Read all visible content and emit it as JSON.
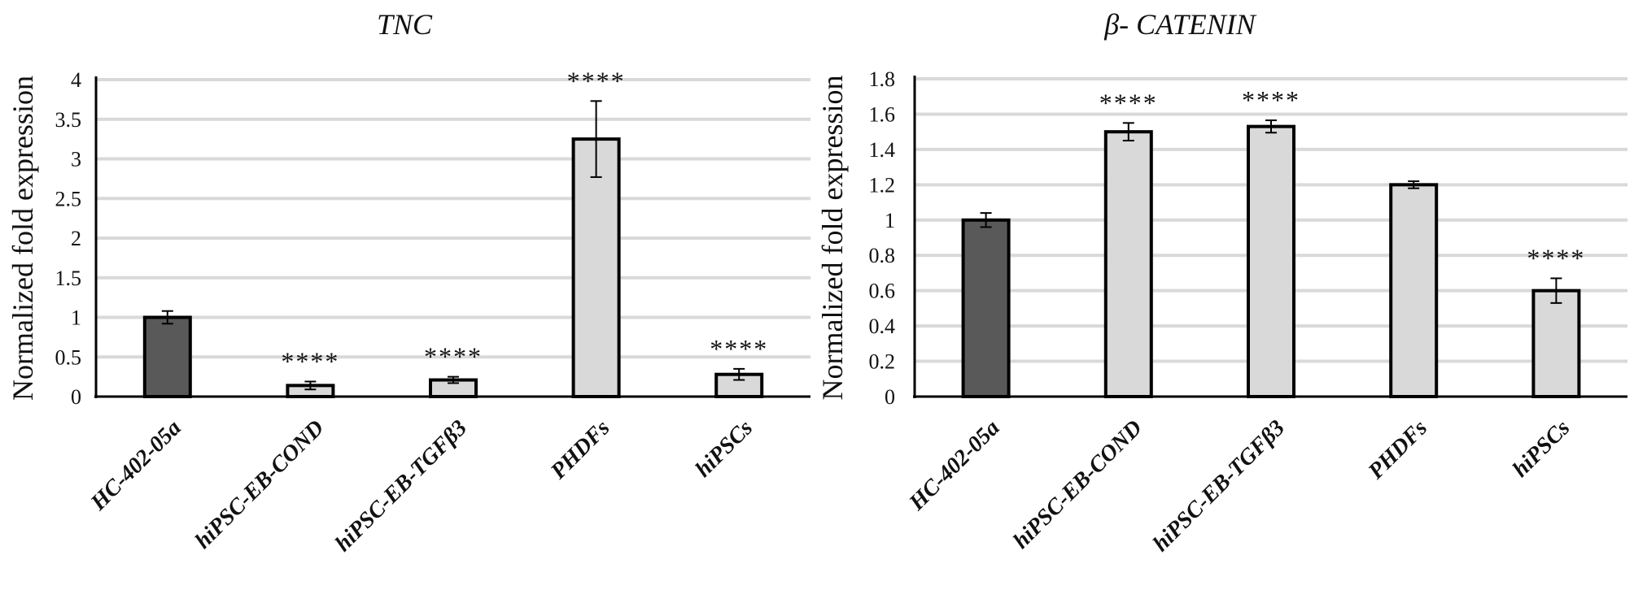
{
  "chart_data": [
    {
      "type": "bar",
      "title": "TNC",
      "ylabel": "Normalized fold expression",
      "xlabel": "",
      "ylim": [
        0,
        4
      ],
      "yticks": [
        "0",
        "0.5",
        "1",
        "1.5",
        "2",
        "2.5",
        "3",
        "3.5",
        "4"
      ],
      "grid": true,
      "categories": [
        "HC-402-05a",
        "hiPSC-EB-COND",
        "hiPSC-EB-TGFβ3",
        "PHDFs",
        "hiPSCs"
      ],
      "values": [
        1.0,
        0.14,
        0.21,
        3.25,
        0.28
      ],
      "error": [
        0.08,
        0.05,
        0.04,
        0.48,
        0.07
      ],
      "significance": [
        "",
        "****",
        "****",
        "****",
        "****"
      ],
      "colors": [
        "#595959",
        "#d9d9d9",
        "#d9d9d9",
        "#d9d9d9",
        "#d9d9d9"
      ]
    },
    {
      "type": "bar",
      "title": "β- CATENIN",
      "ylabel": "Normalized fold expression",
      "xlabel": "",
      "ylim": [
        0,
        1.8
      ],
      "yticks": [
        "0",
        "0.2",
        "0.4",
        "0.6",
        "0.8",
        "1",
        "1.2",
        "1.4",
        "1.6",
        "1.8"
      ],
      "grid": true,
      "categories": [
        "HC-402-05a",
        "hiPSC-EB-COND",
        "hiPSC-EB-TGFβ3",
        "PHDFs",
        "hiPSCs"
      ],
      "values": [
        1.0,
        1.5,
        1.53,
        1.2,
        0.6
      ],
      "error": [
        0.04,
        0.05,
        0.035,
        0.02,
        0.07
      ],
      "significance": [
        "",
        "****",
        "****",
        "",
        "****"
      ],
      "colors": [
        "#595959",
        "#d9d9d9",
        "#d9d9d9",
        "#d9d9d9",
        "#d9d9d9"
      ]
    }
  ]
}
